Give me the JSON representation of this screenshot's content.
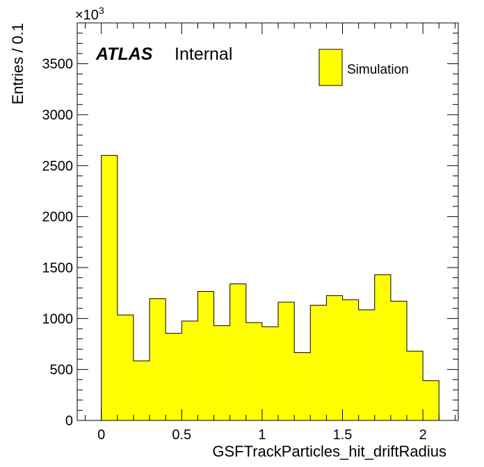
{
  "chart_data": {
    "type": "bar",
    "histogram": true,
    "bin_width": 0.1,
    "bin_edges": [
      0,
      0.1,
      0.2,
      0.3,
      0.4,
      0.5,
      0.6,
      0.7,
      0.8,
      0.9,
      1.0,
      1.1,
      1.2,
      1.3,
      1.4,
      1.5,
      1.6,
      1.7,
      1.8,
      1.9,
      2.0,
      2.1
    ],
    "values": [
      2600,
      1035,
      585,
      1195,
      855,
      975,
      1265,
      930,
      1340,
      960,
      920,
      1160,
      665,
      1130,
      1225,
      1185,
      1085,
      1430,
      1170,
      680,
      390
    ],
    "xlim": [
      -0.15,
      2.22
    ],
    "ylim": [
      0,
      3900
    ],
    "x_ticks": [
      0,
      0.5,
      1,
      1.5,
      2
    ],
    "x_tick_labels": [
      "0",
      "0.5",
      "1",
      "1.5",
      "2"
    ],
    "y_ticks": [
      0,
      500,
      1000,
      1500,
      2000,
      2500,
      3000,
      3500
    ],
    "y_tick_labels": [
      "0",
      "500",
      "1000",
      "1500",
      "2000",
      "2500",
      "3000",
      "3500"
    ],
    "xlabel": "GSFTrackParticles_hit_driftRadius",
    "ylabel": "Entries / 0.1",
    "y_multiplier": "×10",
    "y_multiplier_exp": "3",
    "atlas_label": "ATLAS",
    "atlas_status": "Internal",
    "legend": {
      "entries": [
        "Simulation"
      ],
      "placement": "top-right"
    },
    "fill_color": "#ffff00",
    "line_color": "#000000",
    "grid": false
  }
}
